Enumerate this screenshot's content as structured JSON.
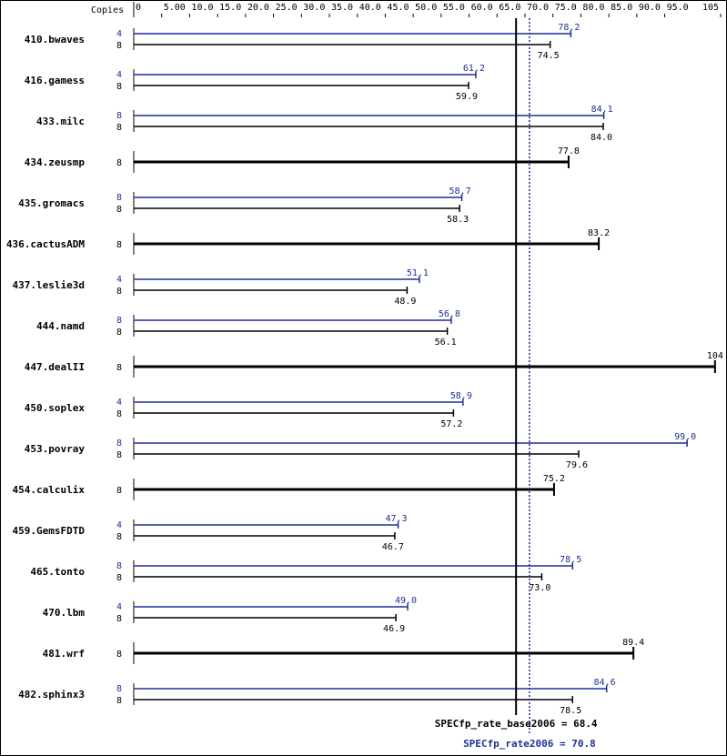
{
  "colors": {
    "base": "#000000",
    "peak": "#1f2f99",
    "background": "#ffffff"
  },
  "chart_data": {
    "type": "bar",
    "orientation": "horizontal",
    "axis_title": "Copies",
    "xlim": [
      0,
      105
    ],
    "ticks": [
      "0",
      "5.00",
      "10.0",
      "15.0",
      "20.0",
      "25.0",
      "30.0",
      "35.0",
      "40.0",
      "45.0",
      "50.0",
      "55.0",
      "60.0",
      "65.0",
      "70.0",
      "75.0",
      "80.0",
      "85.0",
      "90.0",
      "95.0",
      "105"
    ],
    "tick_values": [
      0,
      5,
      10,
      15,
      20,
      25,
      30,
      35,
      40,
      45,
      50,
      55,
      60,
      65,
      70,
      75,
      80,
      85,
      90,
      95,
      105
    ],
    "series": [
      {
        "name": "base",
        "color": "#000000"
      },
      {
        "name": "peak",
        "color": "#1f2f99"
      }
    ],
    "benchmarks": [
      {
        "name": "410.bwaves",
        "peak": {
          "copies": "4",
          "value": 78.2,
          "label": "78.2"
        },
        "base": {
          "copies": "8",
          "value": 74.5,
          "label": "74.5"
        }
      },
      {
        "name": "416.gamess",
        "peak": {
          "copies": "4",
          "value": 61.2,
          "label": "61.2"
        },
        "base": {
          "copies": "8",
          "value": 59.9,
          "label": "59.9"
        }
      },
      {
        "name": "433.milc",
        "peak": {
          "copies": "8",
          "value": 84.1,
          "label": "84.1"
        },
        "base": {
          "copies": "8",
          "value": 84.0,
          "label": "84.0"
        }
      },
      {
        "name": "434.zeusmp",
        "combined": {
          "copies": "8",
          "value": 77.8,
          "label": "77.8"
        }
      },
      {
        "name": "435.gromacs",
        "peak": {
          "copies": "8",
          "value": 58.7,
          "label": "58.7"
        },
        "base": {
          "copies": "8",
          "value": 58.3,
          "label": "58.3"
        }
      },
      {
        "name": "436.cactusADM",
        "combined": {
          "copies": "8",
          "value": 83.2,
          "label": "83.2"
        }
      },
      {
        "name": "437.leslie3d",
        "peak": {
          "copies": "4",
          "value": 51.1,
          "label": "51.1"
        },
        "base": {
          "copies": "8",
          "value": 48.9,
          "label": "48.9"
        }
      },
      {
        "name": "444.namd",
        "peak": {
          "copies": "8",
          "value": 56.8,
          "label": "56.8"
        },
        "base": {
          "copies": "8",
          "value": 56.1,
          "label": "56.1"
        }
      },
      {
        "name": "447.dealII",
        "combined": {
          "copies": "8",
          "value": 104,
          "label": "104"
        }
      },
      {
        "name": "450.soplex",
        "peak": {
          "copies": "4",
          "value": 58.9,
          "label": "58.9"
        },
        "base": {
          "copies": "8",
          "value": 57.2,
          "label": "57.2"
        }
      },
      {
        "name": "453.povray",
        "peak": {
          "copies": "8",
          "value": 99.0,
          "label": "99.0"
        },
        "base": {
          "copies": "8",
          "value": 79.6,
          "label": "79.6"
        }
      },
      {
        "name": "454.calculix",
        "combined": {
          "copies": "8",
          "value": 75.2,
          "label": "75.2"
        }
      },
      {
        "name": "459.GemsFDTD",
        "peak": {
          "copies": "4",
          "value": 47.3,
          "label": "47.3"
        },
        "base": {
          "copies": "8",
          "value": 46.7,
          "label": "46.7"
        }
      },
      {
        "name": "465.tonto",
        "peak": {
          "copies": "8",
          "value": 78.5,
          "label": "78.5"
        },
        "base": {
          "copies": "8",
          "value": 73.0,
          "label": "73.0"
        }
      },
      {
        "name": "470.lbm",
        "peak": {
          "copies": "4",
          "value": 49.0,
          "label": "49.0"
        },
        "base": {
          "copies": "8",
          "value": 46.9,
          "label": "46.9"
        }
      },
      {
        "name": "481.wrf",
        "combined": {
          "copies": "8",
          "value": 89.4,
          "label": "89.4"
        }
      },
      {
        "name": "482.sphinx3",
        "peak": {
          "copies": "8",
          "value": 84.6,
          "label": "84.6"
        },
        "base": {
          "copies": "8",
          "value": 78.5,
          "label": "78.5"
        }
      }
    ],
    "reference_lines": [
      {
        "name": "base",
        "label": "SPECfp_rate_base2006 = 68.4",
        "value": 68.4,
        "style": "solid"
      },
      {
        "name": "peak",
        "label": "SPECfp_rate2006 = 70.8",
        "value": 70.8,
        "style": "dotted"
      }
    ]
  }
}
